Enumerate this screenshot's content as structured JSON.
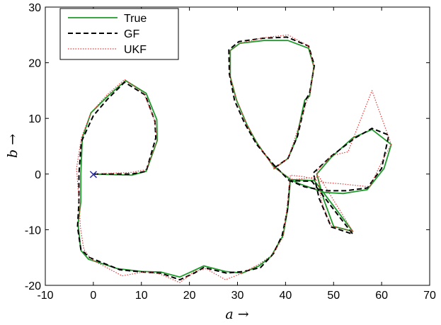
{
  "chart_data": {
    "type": "line",
    "title": "",
    "xlabel": "a →",
    "ylabel": "b →",
    "xlim": [
      -10,
      70
    ],
    "ylim": [
      -20,
      30
    ],
    "xticks": [
      -10,
      0,
      10,
      20,
      30,
      40,
      50,
      60,
      70
    ],
    "yticks": [
      -20,
      -10,
      0,
      10,
      20,
      30
    ],
    "grid": false,
    "legend_position": "top-left",
    "start_marker": {
      "label": "×",
      "x": 0,
      "y": 0,
      "color": "#2b2bb0"
    },
    "series": [
      {
        "name": "True",
        "color": "#1f9a2a",
        "style": "solid",
        "x": [
          0,
          8,
          11,
          13.3,
          13.2,
          11,
          6.7,
          3,
          -0.5,
          -2.3,
          -2.6,
          -2.6,
          -3.2,
          -2.6,
          -1,
          5,
          10,
          14,
          18,
          20.5,
          23,
          27.5,
          31,
          34.5,
          37,
          39.5,
          40.5,
          41,
          43,
          48,
          52,
          57,
          60.5,
          62,
          58,
          54,
          49.5,
          46.5,
          48,
          50,
          54,
          46,
          41,
          37.5,
          34,
          32,
          29.8,
          28.5,
          28.5,
          30.5,
          35.5,
          40.5,
          44.8,
          45.9,
          45,
          44,
          42.3,
          40.5,
          37.5
        ],
        "y": [
          0,
          -0.2,
          0.5,
          6,
          9.8,
          14.5,
          16.8,
          14,
          11,
          6.5,
          0,
          -5,
          -9,
          -13.7,
          -15.3,
          -17,
          -17.5,
          -17.6,
          -18.5,
          -17.5,
          -16.5,
          -17.5,
          -17.8,
          -16.5,
          -14.8,
          -11,
          -6,
          -1,
          -1.8,
          -3.3,
          -3.5,
          -2.8,
          1,
          5.3,
          8,
          6.5,
          3,
          0,
          -4.7,
          -9.4,
          -10.3,
          -1.2,
          -1,
          1.4,
          5.6,
          8.8,
          13.3,
          17.5,
          22.2,
          23.5,
          24,
          24,
          22.6,
          19.3,
          14,
          13.3,
          6.5,
          2.8,
          0.9
        ]
      },
      {
        "name": "GF",
        "color": "#000000",
        "style": "dashed",
        "x": [
          0,
          8,
          11,
          13,
          12.8,
          10.8,
          6.5,
          3,
          0,
          -2.5,
          -3,
          -3,
          -3.3,
          -2.6,
          -0.8,
          5.5,
          10.2,
          14,
          18,
          21,
          23,
          27.7,
          31.3,
          34.8,
          37.5,
          39.3,
          40.4,
          40.9,
          44,
          48.5,
          52.5,
          57,
          60,
          61.5,
          58,
          54.5,
          49.5,
          45.8,
          47,
          49.5,
          54,
          45.5,
          40.8,
          37.5,
          34,
          31.5,
          29.4,
          28.3,
          28.2,
          30.3,
          35.3,
          40.3,
          44.8,
          46,
          45,
          44.3,
          42.5,
          40.5,
          37.5
        ],
        "y": [
          0,
          0,
          0.5,
          6.5,
          9.5,
          14.2,
          16.5,
          13.5,
          10.5,
          5.8,
          0,
          -5,
          -9.5,
          -13.5,
          -15,
          -17.2,
          -17.6,
          -17.8,
          -19,
          -17.8,
          -16.8,
          -17.8,
          -17.5,
          -16.8,
          -14.3,
          -11,
          -6.5,
          -1.2,
          -2.3,
          -3,
          -3,
          -2.5,
          1,
          7,
          8.2,
          6.5,
          3.2,
          0.2,
          -4.4,
          -9.5,
          -10.8,
          -1.3,
          -1.2,
          1.7,
          5.3,
          9.1,
          13.2,
          18,
          22.3,
          23.8,
          24.4,
          24.6,
          23,
          19.5,
          14.5,
          13.5,
          6.8,
          2.8,
          1
        ]
      },
      {
        "name": "UKF",
        "color": "#e83a3a",
        "style": "dotted",
        "x": [
          0,
          8,
          11,
          13.3,
          12.7,
          10.5,
          6.5,
          2.8,
          -0.5,
          -2.5,
          -3.5,
          -3,
          -2.7,
          -2,
          -0.5,
          6,
          11,
          14,
          18,
          21,
          23.5,
          27.5,
          31,
          34.5,
          37.3,
          39.5,
          40.3,
          41,
          44,
          48,
          52,
          57.5,
          60.5,
          62,
          58,
          53,
          49.5,
          46.5,
          47.5,
          49.5,
          54,
          47,
          41.5,
          37.5,
          34,
          32,
          29.8,
          28.5,
          28.5,
          30.5,
          35.5,
          40.5,
          44.8,
          45.9,
          45,
          44.5,
          42,
          40.5,
          37.5
        ],
        "y": [
          0,
          0.3,
          0.8,
          6,
          9.8,
          14.5,
          17,
          14.2,
          11,
          6.5,
          1,
          -4.5,
          -9.5,
          -13.5,
          -15.3,
          -18.3,
          -17.5,
          -18,
          -19.5,
          -17.5,
          -17,
          -19,
          -17.8,
          -16.2,
          -14.5,
          -11.3,
          -6,
          -0.2,
          -0.5,
          -1.5,
          -1.8,
          -2.3,
          3,
          5.3,
          15,
          4,
          3.3,
          0.5,
          -5,
          -9.3,
          -10.3,
          -0.5,
          -1,
          1.2,
          5.8,
          8.7,
          13.4,
          17.5,
          22.2,
          23.5,
          24.5,
          25,
          23,
          19.3,
          14,
          13.3,
          6.5,
          2.8,
          0.9
        ]
      }
    ]
  }
}
